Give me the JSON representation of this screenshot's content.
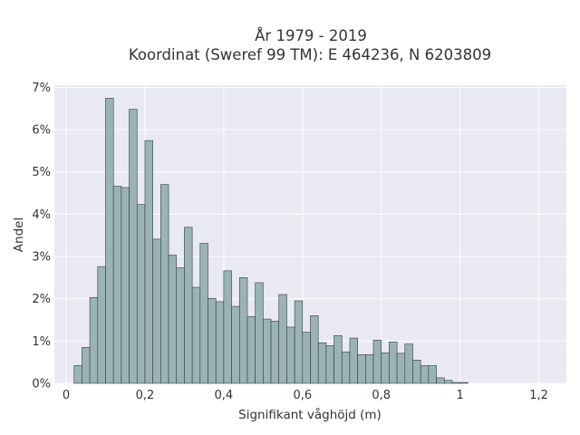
{
  "chart_data": {
    "type": "bar",
    "title": "År 1979 - 2019",
    "subtitle": "Koordinat (Sweref 99 TM): E 464236, N 6203809",
    "xlabel": "Signifikant våghöjd (m)",
    "ylabel": "Andel",
    "x_ticks": [
      {
        "value": 0,
        "label": "0"
      },
      {
        "value": 0.2,
        "label": "0,2"
      },
      {
        "value": 0.4,
        "label": "0,4"
      },
      {
        "value": 0.6,
        "label": "0,6"
      },
      {
        "value": 0.8,
        "label": "0,8"
      },
      {
        "value": 1.0,
        "label": "1"
      },
      {
        "value": 1.2,
        "label": "1,2"
      }
    ],
    "y_ticks": [
      {
        "value": 0,
        "label": "0%"
      },
      {
        "value": 1,
        "label": "1%"
      },
      {
        "value": 2,
        "label": "2%"
      },
      {
        "value": 3,
        "label": "3%"
      },
      {
        "value": 4,
        "label": "4%"
      },
      {
        "value": 5,
        "label": "5%"
      },
      {
        "value": 6,
        "label": "6%"
      },
      {
        "value": 7,
        "label": "7%"
      }
    ],
    "xlim": [
      -0.03,
      1.27
    ],
    "ylim": [
      0,
      7.05
    ],
    "bin_start": 0.02,
    "bin_width": 0.02,
    "values": [
      0.42,
      0.85,
      2.03,
      2.76,
      6.74,
      4.66,
      4.63,
      6.48,
      4.23,
      5.74,
      3.41,
      4.7,
      3.03,
      2.73,
      3.69,
      2.27,
      3.31,
      2.01,
      1.93,
      2.66,
      1.82,
      2.5,
      1.58,
      2.38,
      1.52,
      1.47,
      2.1,
      1.33,
      1.95,
      1.21,
      1.6,
      0.96,
      0.89,
      1.13,
      0.74,
      1.07,
      0.68,
      0.68,
      1.02,
      0.72,
      0.98,
      0.71,
      0.93,
      0.55,
      0.42,
      0.42,
      0.13,
      0.07,
      0.02,
      0.02
    ],
    "bar_fill": "#9bb3b3",
    "bar_stroke": "#2f3f3f",
    "plot_background": "#e9e9f1",
    "grid": true,
    "grid_color": "#ffffff"
  }
}
